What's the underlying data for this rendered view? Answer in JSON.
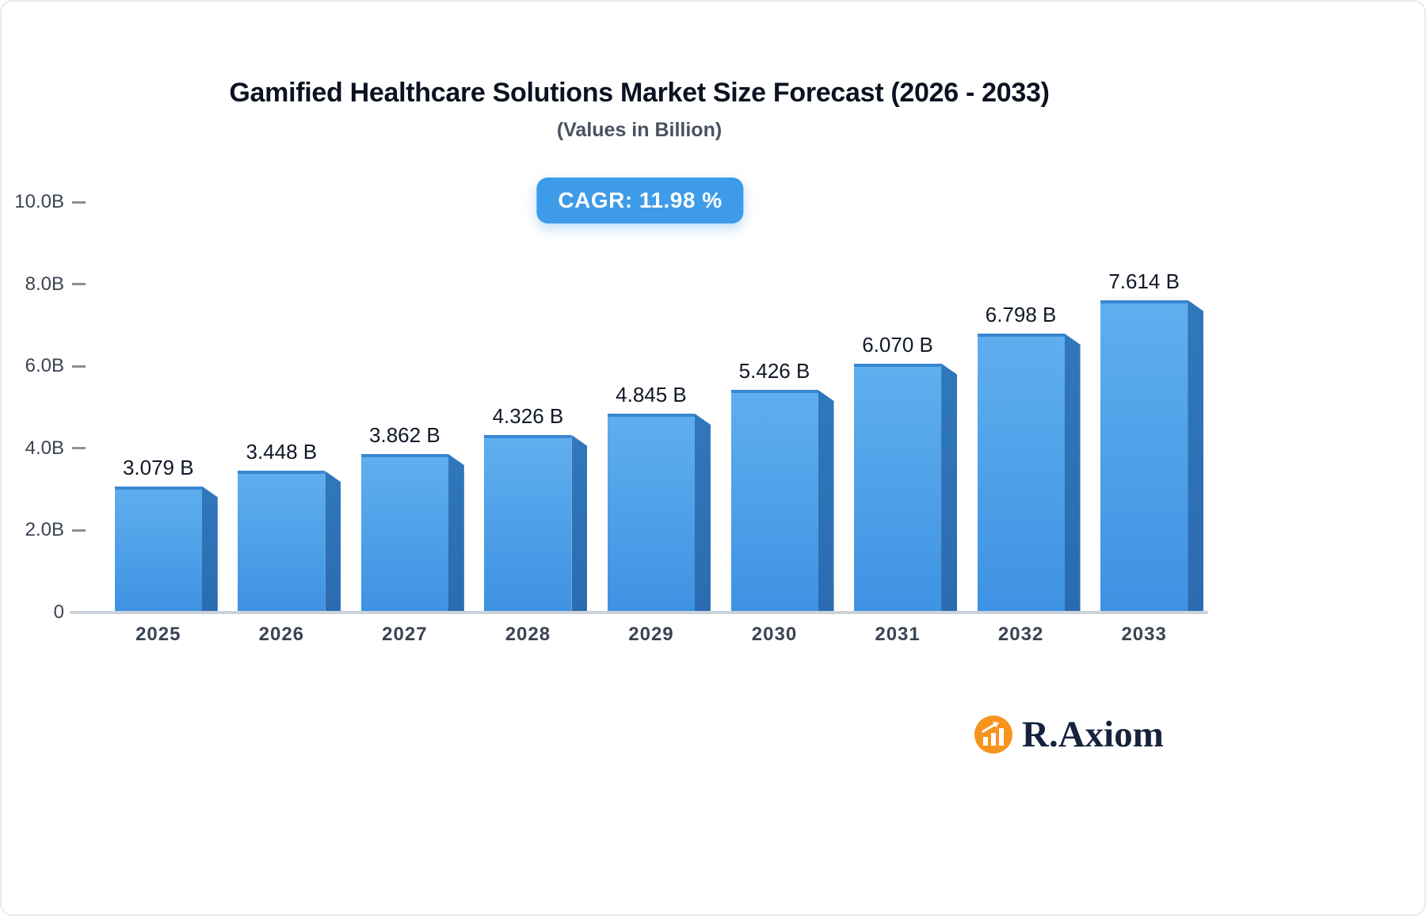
{
  "header": {
    "title": "Gamified Healthcare Solutions Market Size Forecast (2026 - 2033)",
    "subtitle": "(Values in Billion)"
  },
  "badge": {
    "label": "CAGR: 11.98 %"
  },
  "logo": {
    "text": "R.Axiom",
    "icon": "bar-chart-in-orange-circle",
    "icon_color": "#F7941E",
    "text_color": "#16233d"
  },
  "colors": {
    "bar_front_top": "#5FAEEE",
    "bar_front_bottom": "#3E92E2",
    "bar_side": "#2B6CB0",
    "badge_background": "#3D9BE9",
    "axis_line": "#ccd2d9",
    "label_text": "#3b4452"
  },
  "chart_data": {
    "type": "bar",
    "title": "Gamified Healthcare Solutions Market Size Forecast (2026 - 2033)",
    "subtitle": "(Values in Billion)",
    "cagr": "11.98 %",
    "categories": [
      "2025",
      "2026",
      "2027",
      "2028",
      "2029",
      "2030",
      "2031",
      "2032",
      "2033"
    ],
    "values": [
      3.079,
      3.448,
      3.862,
      4.326,
      4.845,
      5.426,
      6.07,
      6.798,
      7.614
    ],
    "value_labels": [
      "3.079 B",
      "3.448 B",
      "3.862 B",
      "4.326 B",
      "4.845 B",
      "5.426 B",
      "6.070 B",
      "6.798 B",
      "7.614 B"
    ],
    "xlabel": "",
    "ylabel": "",
    "ylim": [
      0,
      10
    ],
    "yticks": {
      "values": [
        0,
        2,
        4,
        6,
        8,
        10
      ],
      "labels": [
        "0",
        "2.0B",
        "4.0B",
        "6.0B",
        "8.0B",
        "10.0B"
      ]
    },
    "grid": false,
    "legend": false
  }
}
